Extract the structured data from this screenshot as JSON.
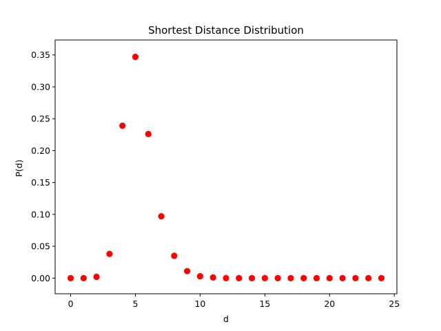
{
  "chart_data": {
    "type": "scatter",
    "title": "Shortest Distance Distribution",
    "xlabel": "d",
    "ylabel": "P(d)",
    "xlim": [
      -1.2,
      25.2
    ],
    "ylim": [
      -0.0245,
      0.3735
    ],
    "xticks": [
      0,
      5,
      10,
      15,
      20,
      25
    ],
    "xtick_labels": [
      "0",
      "5",
      "10",
      "15",
      "20",
      "25"
    ],
    "yticks": [
      0.0,
      0.05,
      0.1,
      0.15,
      0.2,
      0.25,
      0.3,
      0.35
    ],
    "ytick_labels": [
      "0.00",
      "0.05",
      "0.10",
      "0.15",
      "0.20",
      "0.25",
      "0.30",
      "0.35"
    ],
    "grid": false,
    "marker_color": "#ff0000",
    "series": [
      {
        "x": [
          0,
          1,
          2,
          3,
          4,
          5,
          6,
          7,
          8,
          9,
          10,
          11,
          12,
          13,
          14,
          15,
          16,
          17,
          18,
          19,
          20,
          21,
          22,
          23,
          24
        ],
        "y": [
          0.0,
          0.0,
          0.002,
          0.038,
          0.239,
          0.347,
          0.226,
          0.097,
          0.035,
          0.011,
          0.003,
          0.001,
          0.0,
          0.0,
          0.0,
          0.0,
          0.0,
          0.0,
          0.0,
          0.0,
          0.0,
          0.0,
          0.0,
          0.0,
          0.0
        ]
      }
    ]
  }
}
